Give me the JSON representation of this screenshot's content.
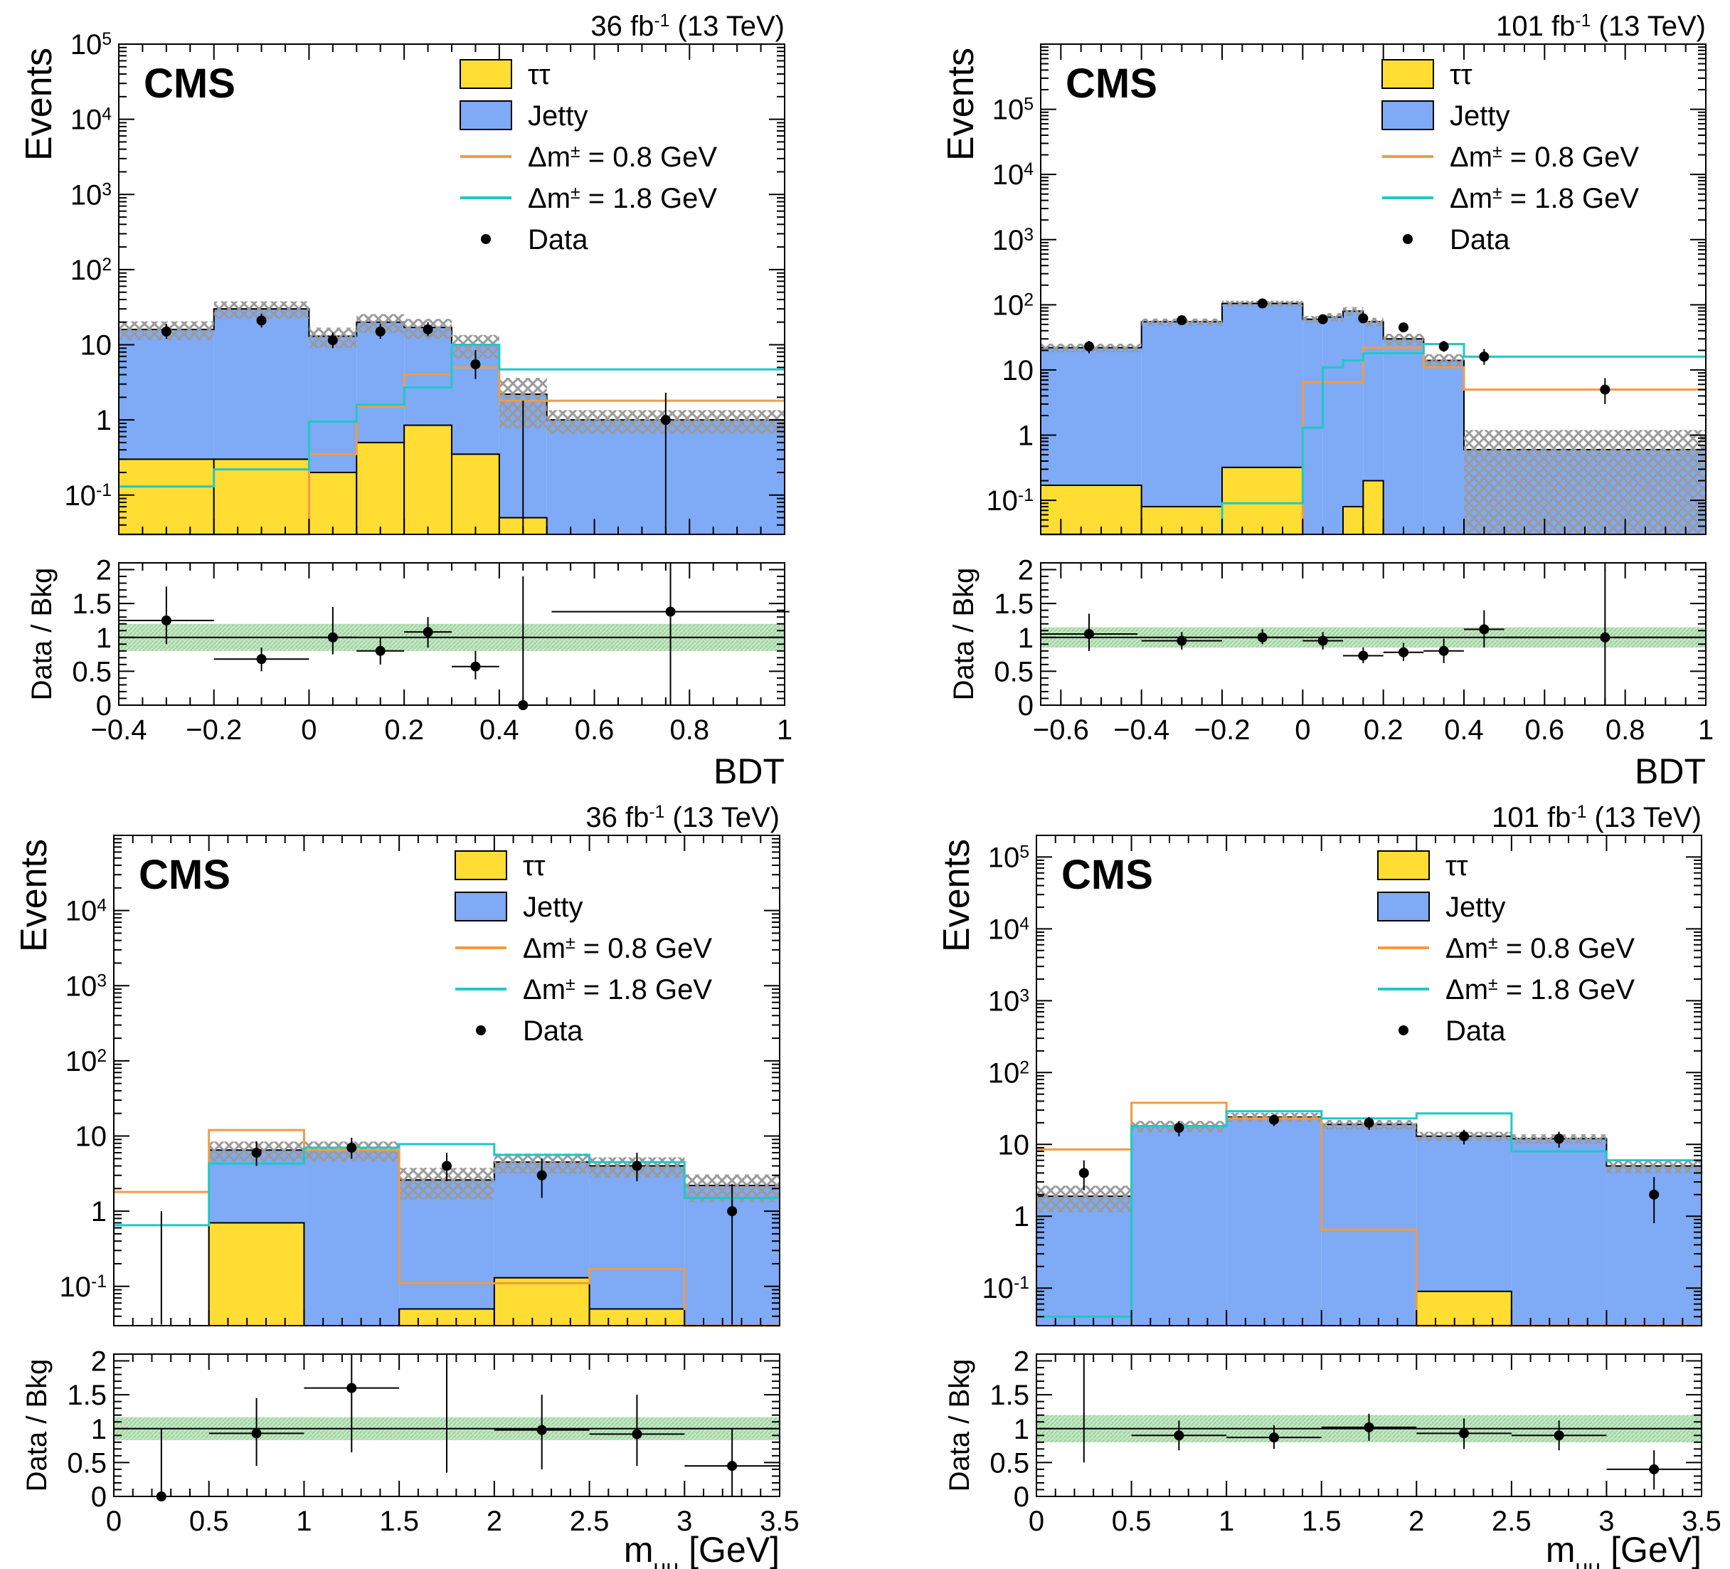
{
  "colors": {
    "tautau": "#ffdd33",
    "jetty": "#7faaf5",
    "signal_08": "#f29b45",
    "signal_18": "#1fc8c8",
    "data": "#000000",
    "unc_hatch": "#9a9a9a",
    "ratio_band": "#9ed39e"
  },
  "legend": {
    "tautau": "ττ",
    "jetty": "Jetty",
    "signal_08": "Δm± = 0.8 GeV",
    "signal_18": "Δm± = 1.8 GeV",
    "data": "Data"
  },
  "chart_data": [
    {
      "type": "bar",
      "id": "bdt-36",
      "lumi_label": "36 fb-1 (13 TeV)",
      "experiment_label": "CMS",
      "ylabel": "Events",
      "xlabel": "BDT",
      "ratio_ylabel": "Data / Bkg",
      "xlim": [
        -0.4,
        1
      ],
      "ylim_log": [
        0.03,
        100000
      ],
      "yticks_major": [
        "10^-1",
        "1",
        "10",
        "10^2",
        "10^3",
        "10^4",
        "10^5"
      ],
      "xticks": [
        "−0.4",
        "−0.2",
        "0",
        "0.2",
        "0.4",
        "0.6",
        "0.8",
        "1"
      ],
      "ratio_yticks": [
        "0",
        "0.5",
        "1",
        "1.5",
        "2"
      ],
      "bin_edges": [
        -0.4,
        -0.2,
        0,
        0.1,
        0.2,
        0.3,
        0.4,
        0.5,
        1.0
      ],
      "tautau": [
        0.3,
        0.3,
        0.2,
        0.5,
        0.85,
        0.35,
        0.05,
        0.0
      ],
      "jetty_total": [
        16,
        30,
        13,
        20,
        17,
        10,
        2.2,
        1.0
      ],
      "unc_rel": [
        0.28,
        0.26,
        0.3,
        0.28,
        0.3,
        0.35,
        0.65,
        0.35
      ],
      "signal_08": [
        0.03,
        0.03,
        0.35,
        1.5,
        4.0,
        5.0,
        1.8,
        1.8
      ],
      "signal_18": [
        0.13,
        0.22,
        0.95,
        1.6,
        2.7,
        10,
        4.7,
        4.7
      ],
      "data": {
        "x": [
          -0.3,
          -0.1,
          0.05,
          0.15,
          0.25,
          0.35,
          0.45,
          0.75
        ],
        "y": [
          15,
          21,
          11.5,
          15,
          16,
          5.5,
          0,
          1
        ],
        "ylo": [
          12,
          17,
          9,
          12,
          13,
          3.5,
          0,
          0
        ],
        "yhi": [
          19,
          26,
          14.5,
          19,
          20,
          8.5,
          1.8,
          2.3
        ]
      },
      "ratio": {
        "x": [
          -0.3,
          -0.1,
          0.05,
          0.15,
          0.25,
          0.35,
          0.45,
          0.76
        ],
        "y": [
          1.25,
          0.68,
          1.0,
          0.8,
          1.08,
          0.57,
          0.0,
          1.38
        ],
        "ylo": [
          0.9,
          0.5,
          0.75,
          0.6,
          0.85,
          0.38,
          0.0,
          0.0
        ],
        "yhi": [
          1.75,
          0.85,
          1.45,
          1.0,
          1.3,
          0.8,
          1.9,
          2.1
        ],
        "xerr": [
          0.1,
          0.1,
          0.05,
          0.05,
          0.05,
          0.05,
          0.05,
          0.25
        ],
        "band": 0.2
      }
    },
    {
      "type": "bar",
      "id": "bdt-101",
      "lumi_label": "101 fb-1 (13 TeV)",
      "experiment_label": "CMS",
      "ylabel": "Events",
      "xlabel": "BDT",
      "ratio_ylabel": "Data / Bkg",
      "xlim": [
        -0.65,
        1
      ],
      "ylim_log": [
        0.03,
        1000000
      ],
      "yticks_major": [
        "10^-1",
        "1",
        "10",
        "10^2",
        "10^3",
        "10^4",
        "10^5"
      ],
      "xticks": [
        "−0.6",
        "−0.4",
        "−0.2",
        "0",
        "0.2",
        "0.4",
        "0.6",
        "0.8",
        "1"
      ],
      "ratio_yticks": [
        "0",
        "0.5",
        "1",
        "1.5",
        "2"
      ],
      "bin_edges": [
        -0.65,
        -0.4,
        -0.2,
        0,
        0.05,
        0.1,
        0.15,
        0.2,
        0.3,
        0.4,
        0.5,
        1.0
      ],
      "tautau": [
        0.17,
        0.08,
        0.32,
        0.0,
        0.0,
        0.08,
        0.2,
        0.0,
        0.0,
        0.0,
        0.0
      ],
      "jetty_total": [
        22,
        55,
        105,
        60,
        65,
        80,
        55,
        30,
        14,
        0.6,
        0.6
      ],
      "unc_rel": [
        0.15,
        0.12,
        0.1,
        0.12,
        0.15,
        0.15,
        0.15,
        0.2,
        0.25,
        1.0,
        1.0
      ],
      "signal_08": [
        0.03,
        0.03,
        0.03,
        6.5,
        6.5,
        6.5,
        22,
        22,
        11,
        5,
        5
      ],
      "signal_18": [
        0.03,
        0.03,
        0.09,
        1.3,
        11,
        14,
        18,
        18,
        25,
        16,
        16
      ],
      "data": {
        "x": [
          -0.53,
          -0.3,
          -0.1,
          0.05,
          0.15,
          0.25,
          0.35,
          0.45,
          0.75
        ],
        "y": [
          23,
          58,
          105,
          60,
          62,
          45,
          23,
          16,
          5
        ],
        "ylo": [
          18,
          50,
          95,
          52,
          54,
          39,
          19,
          12,
          3
        ],
        "yhi": [
          28,
          66,
          115,
          68,
          70,
          52,
          28,
          21,
          7.5
        ]
      },
      "ratio": {
        "x": [
          -0.53,
          -0.3,
          -0.1,
          0.05,
          0.15,
          0.25,
          0.35,
          0.45,
          0.75
        ],
        "y": [
          1.05,
          0.95,
          1.0,
          0.95,
          0.73,
          0.78,
          0.8,
          1.12,
          1.0
        ],
        "ylo": [
          0.8,
          0.82,
          0.9,
          0.82,
          0.62,
          0.65,
          0.62,
          0.85,
          0.0
        ],
        "yhi": [
          1.35,
          1.08,
          1.12,
          1.08,
          0.85,
          0.92,
          0.98,
          1.4,
          2.0
        ],
        "xerr": [
          0.12,
          0.1,
          0.1,
          0.05,
          0.05,
          0.05,
          0.05,
          0.05,
          0.25
        ],
        "band": 0.15
      }
    },
    {
      "type": "bar",
      "id": "mmumu-36",
      "lumi_label": "36 fb-1 (13 TeV)",
      "experiment_label": "CMS",
      "ylabel": "Events",
      "xlabel": "mμμ [GeV]",
      "ratio_ylabel": "Data / Bkg",
      "xlim": [
        0,
        3.5
      ],
      "ylim_log": [
        0.03,
        100000
      ],
      "yticks_major": [
        "10^-1",
        "1",
        "10",
        "10^2",
        "10^3",
        "10^4"
      ],
      "xticks": [
        "0",
        "0.5",
        "1",
        "1.5",
        "2",
        "2.5",
        "3",
        "3.5"
      ],
      "ratio_yticks": [
        "0",
        "0.5",
        "1",
        "1.5",
        "2"
      ],
      "bin_edges": [
        0,
        0.5,
        1,
        1.5,
        2,
        2.5,
        3,
        3.5
      ],
      "tautau": [
        0.0,
        0.7,
        0.0,
        0.05,
        0.13,
        0.05,
        0.0
      ],
      "jetty_total": [
        0.0,
        6.5,
        6.5,
        2.6,
        4.5,
        4.0,
        2.2
      ],
      "unc_rel": [
        0.0,
        0.3,
        0.3,
        0.45,
        0.3,
        0.3,
        0.4
      ],
      "signal_08": [
        1.8,
        12,
        6.5,
        0.11,
        0.11,
        0.17,
        0.03
      ],
      "signal_18": [
        0.65,
        4.3,
        7,
        7.8,
        5.6,
        4.5,
        1.5
      ],
      "data": {
        "x": [
          0.25,
          0.75,
          1.25,
          1.75,
          2.25,
          2.75,
          3.25
        ],
        "y": [
          0,
          6,
          7,
          4,
          3,
          4,
          1
        ],
        "ylo": [
          0,
          4,
          5,
          2.5,
          1.5,
          2.5,
          0.01
        ],
        "yhi": [
          1,
          8.5,
          9.5,
          6,
          5,
          6,
          2.3
        ]
      },
      "ratio": {
        "x": [
          0.25,
          0.75,
          1.25,
          1.75,
          2.25,
          2.75,
          3.25
        ],
        "y": [
          0,
          0.93,
          1.6,
          null,
          0.98,
          0.92,
          0.45
        ],
        "ylo": [
          0,
          0.45,
          0.65,
          0.35,
          0.4,
          0.45,
          0.0
        ],
        "yhi": [
          1.0,
          1.45,
          2.1,
          2.1,
          1.5,
          1.5,
          1.0
        ],
        "xerr": [
          0,
          0.25,
          0.25,
          0,
          0.25,
          0.25,
          0.25
        ],
        "band": 0.17
      }
    },
    {
      "type": "bar",
      "id": "mmumu-101",
      "lumi_label": "101 fb-1 (13 TeV)",
      "experiment_label": "CMS",
      "ylabel": "Events",
      "xlabel": "mμμ [GeV]",
      "ratio_ylabel": "Data / Bkg",
      "xlim": [
        0,
        3.5
      ],
      "ylim_log": [
        0.03,
        200000
      ],
      "yticks_major": [
        "10^-1",
        "1",
        "10",
        "10^2",
        "10^3",
        "10^4",
        "10^5"
      ],
      "xticks": [
        "0",
        "0.5",
        "1",
        "1.5",
        "2",
        "2.5",
        "3",
        "3.5"
      ],
      "ratio_yticks": [
        "0",
        "0.5",
        "1",
        "1.5",
        "2"
      ],
      "bin_edges": [
        0,
        0.5,
        1,
        1.5,
        2,
        2.5,
        3,
        3.5
      ],
      "tautau": [
        0.0,
        0.0,
        0.0,
        0.0,
        0.09,
        0.0,
        0.0
      ],
      "jetty_total": [
        1.9,
        18,
        24,
        19,
        13,
        12,
        5
      ],
      "unc_rel": [
        0.4,
        0.18,
        0.15,
        0.15,
        0.15,
        0.15,
        0.2
      ],
      "signal_08": [
        8.5,
        38,
        23,
        0.65,
        0.03,
        0.03,
        0.03
      ],
      "signal_18": [
        0.04,
        18,
        29,
        23,
        27,
        8,
        6
      ],
      "data": {
        "x": [
          0.25,
          0.75,
          1.25,
          1.75,
          2.25,
          2.75,
          3.25
        ],
        "y": [
          4,
          17,
          22,
          20,
          13,
          12,
          2
        ],
        "ylo": [
          2.3,
          13,
          18,
          16,
          10,
          9,
          0.8
        ],
        "yhi": [
          6,
          21,
          26,
          24,
          16,
          15,
          3.5
        ]
      },
      "ratio": {
        "x": [
          0.25,
          0.75,
          1.25,
          1.75,
          2.25,
          2.75,
          3.25
        ],
        "y": [
          null,
          0.9,
          0.87,
          1.02,
          0.93,
          0.9,
          0.4
        ],
        "ylo": [
          0.5,
          0.68,
          0.7,
          0.82,
          0.7,
          0.68,
          0.1
        ],
        "yhi": [
          2.1,
          1.12,
          1.05,
          1.22,
          1.15,
          1.12,
          0.68
        ],
        "xerr": [
          0,
          0.25,
          0.25,
          0.25,
          0.25,
          0.25,
          0.25
        ],
        "band": 0.2
      }
    }
  ]
}
